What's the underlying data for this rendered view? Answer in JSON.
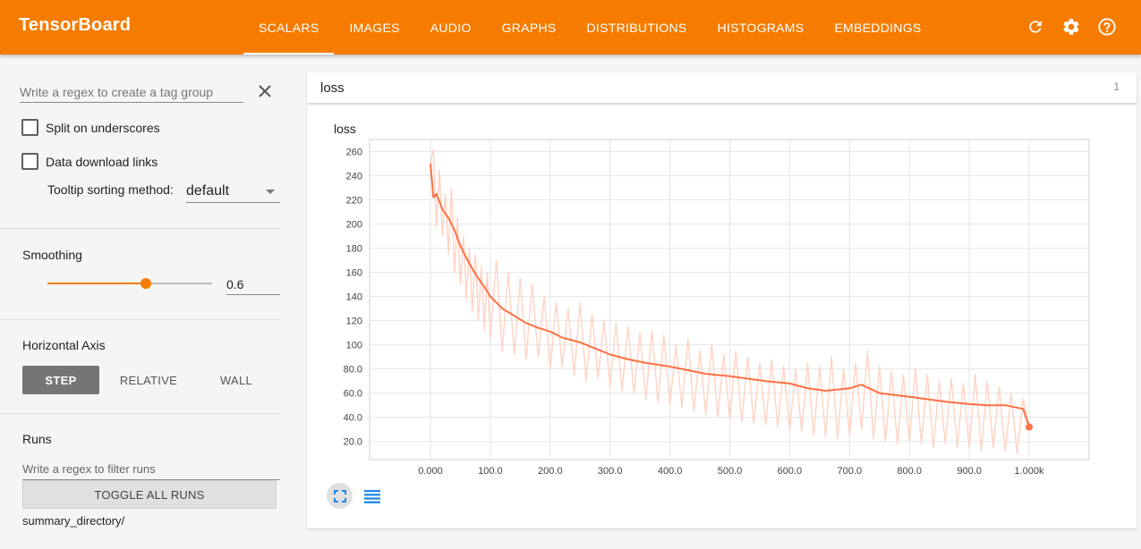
{
  "app": {
    "title": "TensorBoard"
  },
  "tabs": [
    {
      "label": "SCALARS",
      "active": true
    },
    {
      "label": "IMAGES"
    },
    {
      "label": "AUDIO"
    },
    {
      "label": "GRAPHS"
    },
    {
      "label": "DISTRIBUTIONS"
    },
    {
      "label": "HISTOGRAMS"
    },
    {
      "label": "EMBEDDINGS"
    }
  ],
  "top_icons": [
    "refresh-icon",
    "settings-icon",
    "help-icon"
  ],
  "sidebar": {
    "tag_regex_placeholder": "Write a regex to create a tag group",
    "split_label": "Split on underscores",
    "download_label": "Data download links",
    "tooltip_label": "Tooltip sorting method:",
    "tooltip_value": "default",
    "smoothing_title": "Smoothing",
    "smoothing_value": "0.6",
    "smoothing_fraction": 0.6,
    "axis_title": "Horizontal Axis",
    "axis_options": [
      "STEP",
      "RELATIVE",
      "WALL"
    ],
    "axis_selected": "STEP",
    "runs_title": "Runs",
    "runs_placeholder": "Write a regex to filter runs",
    "toggle_label": "TOGGLE ALL RUNS",
    "run_name": "summary_directory/"
  },
  "main": {
    "group_title": "loss",
    "group_count": "1",
    "chart_title": "loss"
  },
  "colors": {
    "accent": "#f57c00",
    "series": "#ff7043",
    "raw_series": "#ffd3c4"
  },
  "chart_data": {
    "type": "line",
    "title": "loss",
    "xlabel": "",
    "ylabel": "",
    "xlim": [
      0,
      1000
    ],
    "ylim": [
      5,
      270
    ],
    "x_ticks": [
      "0.000",
      "100.0",
      "200.0",
      "300.0",
      "400.0",
      "500.0",
      "600.0",
      "700.0",
      "800.0",
      "900.0",
      "1.000k"
    ],
    "y_ticks": [
      "20.0",
      "40.0",
      "60.0",
      "80.0",
      "100",
      "120",
      "140",
      "160",
      "180",
      "200",
      "220",
      "240",
      "260"
    ],
    "grid": true,
    "series": [
      {
        "role": "smoothed",
        "x": [
          0,
          5,
          10,
          20,
          30,
          40,
          50,
          60,
          70,
          80,
          90,
          100,
          120,
          140,
          160,
          180,
          200,
          220,
          250,
          280,
          300,
          330,
          360,
          400,
          430,
          460,
          500,
          530,
          560,
          600,
          630,
          660,
          700,
          720,
          750,
          800,
          830,
          860,
          900,
          930,
          960,
          990,
          1000
        ],
        "y": [
          250,
          222,
          225,
          212,
          205,
          195,
          182,
          172,
          163,
          155,
          148,
          140,
          130,
          124,
          118,
          114,
          111,
          106,
          102,
          96,
          92,
          88,
          85,
          82,
          79,
          76,
          74,
          72,
          70,
          68,
          64,
          62,
          64,
          67,
          60,
          57,
          55,
          53,
          51,
          50,
          50,
          47,
          32
        ]
      },
      {
        "role": "raw",
        "x": [
          0,
          5,
          10,
          15,
          20,
          25,
          30,
          35,
          40,
          45,
          50,
          55,
          60,
          65,
          70,
          75,
          80,
          85,
          90,
          95,
          100,
          110,
          120,
          130,
          140,
          150,
          160,
          170,
          180,
          190,
          200,
          210,
          220,
          230,
          240,
          250,
          260,
          270,
          280,
          290,
          300,
          310,
          320,
          330,
          340,
          350,
          360,
          370,
          380,
          390,
          400,
          410,
          420,
          430,
          440,
          450,
          460,
          470,
          480,
          490,
          500,
          510,
          520,
          530,
          540,
          550,
          560,
          570,
          580,
          590,
          600,
          610,
          620,
          630,
          640,
          650,
          660,
          670,
          680,
          690,
          700,
          710,
          720,
          730,
          740,
          750,
          760,
          770,
          780,
          790,
          800,
          810,
          820,
          830,
          840,
          850,
          860,
          870,
          880,
          890,
          900,
          910,
          920,
          930,
          940,
          950,
          960,
          970,
          980,
          990,
          1000
        ],
        "y": [
          250,
          262,
          198,
          245,
          190,
          225,
          175,
          230,
          160,
          205,
          150,
          190,
          138,
          180,
          128,
          175,
          120,
          165,
          112,
          160,
          105,
          170,
          95,
          160,
          92,
          155,
          88,
          150,
          90,
          140,
          80,
          135,
          82,
          130,
          75,
          135,
          70,
          125,
          72,
          120,
          65,
          118,
          62,
          115,
          60,
          110,
          55,
          112,
          52,
          108,
          50,
          100,
          48,
          105,
          45,
          95,
          42,
          100,
          40,
          92,
          38,
          95,
          36,
          90,
          35,
          85,
          34,
          88,
          32,
          82,
          30,
          80,
          28,
          85,
          25,
          82,
          24,
          90,
          22,
          80,
          25,
          85,
          30,
          95,
          22,
          82,
          20,
          78,
          18,
          75,
          20,
          80,
          18,
          75,
          15,
          70,
          18,
          72,
          15,
          68,
          14,
          75,
          12,
          70,
          15,
          65,
          12,
          60,
          10,
          55,
          32
        ]
      }
    ]
  }
}
